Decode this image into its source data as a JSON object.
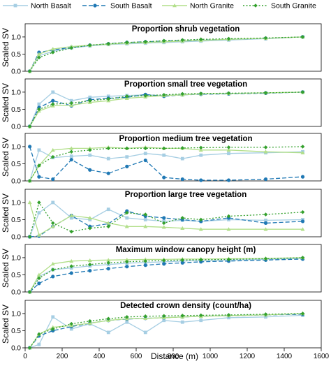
{
  "chart_data": {
    "type": "line",
    "xlabel": "Distance (m)",
    "ylabel": "Scaled SV",
    "xlim": [
      0,
      1600
    ],
    "ylim": [
      0,
      1.1
    ],
    "x_ticks": [
      0,
      200,
      400,
      600,
      800,
      1000,
      1200,
      1400,
      1600
    ],
    "y_ticks": [
      0.0,
      0.5,
      1.0
    ],
    "legend_placement": "top",
    "series": [
      {
        "name": "North Basalt",
        "color": "#a6cee3",
        "line": "solid",
        "marker": "square"
      },
      {
        "name": "South Basalt",
        "color": "#1f78b4",
        "line": "dashed",
        "marker": "circle"
      },
      {
        "name": "North Granite",
        "color": "#b2df8a",
        "line": "solid",
        "marker": "triangle"
      },
      {
        "name": "South Granite",
        "color": "#33a02c",
        "line": "dotted",
        "marker": "diamond"
      }
    ],
    "panels": [
      {
        "title": "Proportion shrub vegetation",
        "x": [
          25,
          75,
          150,
          250,
          350,
          450,
          550,
          650,
          750,
          850,
          950,
          1100,
          1300,
          1500
        ],
        "values": {
          "North Basalt": [
            0.0,
            0.45,
            0.58,
            0.68,
            0.74,
            0.78,
            0.8,
            0.82,
            0.84,
            0.86,
            0.88,
            0.91,
            0.95,
            1.0
          ],
          "South Basalt": [
            0.0,
            0.55,
            0.62,
            0.7,
            0.76,
            0.8,
            0.84,
            0.86,
            0.88,
            0.9,
            0.91,
            0.93,
            0.96,
            1.0
          ],
          "North Granite": [
            0.0,
            0.5,
            0.65,
            0.72,
            0.76,
            0.79,
            0.82,
            0.84,
            0.86,
            0.88,
            0.9,
            0.93,
            0.96,
            1.0
          ],
          "South Granite": [
            0.0,
            0.4,
            0.55,
            0.68,
            0.76,
            0.8,
            0.84,
            0.86,
            0.89,
            0.91,
            0.93,
            0.95,
            0.97,
            1.0
          ]
        }
      },
      {
        "title": "Proportion small tree vegetation",
        "x": [
          25,
          75,
          150,
          250,
          350,
          450,
          550,
          650,
          750,
          850,
          950,
          1100,
          1300,
          1500
        ],
        "values": {
          "North Basalt": [
            0.0,
            0.65,
            1.0,
            0.75,
            0.85,
            0.88,
            0.9,
            0.92,
            0.9,
            0.93,
            0.95,
            0.96,
            0.98,
            1.0
          ],
          "South Basalt": [
            0.0,
            0.55,
            0.75,
            0.6,
            0.78,
            0.82,
            0.85,
            0.93,
            0.88,
            0.92,
            0.94,
            0.95,
            0.97,
            1.0
          ],
          "North Granite": [
            0.0,
            0.45,
            0.6,
            0.62,
            0.7,
            0.75,
            0.82,
            0.86,
            0.9,
            0.92,
            0.95,
            0.96,
            0.98,
            1.0
          ],
          "South Granite": [
            0.0,
            0.5,
            0.65,
            0.68,
            0.75,
            0.8,
            0.88,
            0.9,
            0.92,
            0.95,
            0.96,
            0.97,
            0.98,
            1.0
          ]
        }
      },
      {
        "title": "Proportion medium tree vegetation",
        "x": [
          25,
          75,
          150,
          250,
          350,
          450,
          550,
          650,
          750,
          850,
          950,
          1100,
          1300,
          1500
        ],
        "values": {
          "North Basalt": [
            0.0,
            0.9,
            0.68,
            0.72,
            0.75,
            0.65,
            0.7,
            0.8,
            0.75,
            0.65,
            0.75,
            0.8,
            0.82,
            0.85
          ],
          "South Basalt": [
            1.0,
            0.12,
            0.05,
            0.62,
            0.32,
            0.22,
            0.42,
            0.6,
            0.1,
            0.05,
            0.02,
            0.02,
            0.05,
            0.12
          ],
          "North Granite": [
            0.0,
            0.45,
            0.9,
            0.95,
            0.95,
            0.98,
            0.95,
            0.98,
            0.95,
            0.95,
            0.9,
            0.9,
            0.85,
            0.82
          ],
          "South Granite": [
            0.0,
            0.45,
            0.7,
            0.85,
            0.9,
            0.95,
            0.95,
            0.95,
            0.95,
            0.96,
            0.97,
            0.98,
            0.98,
            1.0
          ]
        }
      },
      {
        "title": "Proportion large tree vegetation",
        "x": [
          25,
          75,
          150,
          250,
          350,
          450,
          550,
          650,
          750,
          850,
          950,
          1100,
          1300,
          1500
        ],
        "values": {
          "North Basalt": [
            0.0,
            0.7,
            1.0,
            0.55,
            0.5,
            0.8,
            0.55,
            0.5,
            0.45,
            0.48,
            0.45,
            0.5,
            0.48,
            0.5
          ],
          "South Basalt": [
            0.0,
            0.02,
            0.3,
            0.62,
            0.3,
            0.38,
            0.75,
            0.6,
            0.55,
            0.5,
            0.45,
            0.55,
            0.4,
            0.45
          ],
          "North Granite": [
            1.0,
            0.05,
            0.3,
            0.62,
            0.55,
            0.4,
            0.3,
            0.3,
            0.28,
            0.25,
            0.22,
            0.22,
            0.22,
            0.22
          ],
          "South Granite": [
            0.0,
            1.0,
            0.4,
            0.15,
            0.25,
            0.3,
            0.7,
            0.65,
            0.4,
            0.55,
            0.5,
            0.6,
            0.65,
            0.72
          ]
        }
      },
      {
        "title": "Maximum window canopy height (m)",
        "x": [
          25,
          75,
          150,
          250,
          350,
          450,
          550,
          650,
          750,
          850,
          950,
          1100,
          1300,
          1500
        ],
        "values": {
          "North Basalt": [
            0.0,
            0.45,
            0.65,
            0.7,
            0.76,
            0.8,
            0.84,
            0.86,
            0.88,
            0.9,
            0.92,
            0.93,
            0.95,
            0.98
          ],
          "South Basalt": [
            0.0,
            0.25,
            0.45,
            0.55,
            0.62,
            0.68,
            0.74,
            0.78,
            0.82,
            0.85,
            0.88,
            0.9,
            0.93,
            0.96
          ],
          "North Granite": [
            0.0,
            0.5,
            0.82,
            0.9,
            0.92,
            0.93,
            0.94,
            0.95,
            0.95,
            0.96,
            0.96,
            0.97,
            0.98,
            1.0
          ],
          "South Granite": [
            0.0,
            0.4,
            0.65,
            0.75,
            0.8,
            0.85,
            0.88,
            0.9,
            0.92,
            0.93,
            0.94,
            0.95,
            0.97,
            1.0
          ]
        }
      },
      {
        "title": "Detected crown density (count/ha)",
        "x": [
          25,
          75,
          150,
          250,
          350,
          450,
          550,
          650,
          750,
          850,
          950,
          1100,
          1300,
          1500
        ],
        "values": {
          "North Basalt": [
            0.0,
            0.1,
            0.9,
            0.55,
            0.7,
            0.45,
            0.75,
            0.45,
            0.8,
            0.75,
            0.8,
            0.88,
            0.9,
            0.95
          ],
          "South Basalt": [
            0.0,
            0.35,
            0.5,
            0.62,
            0.72,
            0.8,
            0.84,
            0.86,
            0.88,
            0.9,
            0.92,
            0.94,
            0.96,
            0.98
          ],
          "North Granite": [
            0.0,
            0.4,
            0.6,
            0.65,
            0.72,
            0.8,
            0.85,
            0.86,
            0.88,
            0.9,
            0.92,
            0.94,
            0.96,
            1.0
          ],
          "South Granite": [
            0.0,
            0.4,
            0.55,
            0.7,
            0.78,
            0.85,
            0.9,
            0.92,
            0.93,
            0.94,
            0.95,
            0.96,
            0.98,
            1.0
          ]
        }
      }
    ]
  }
}
